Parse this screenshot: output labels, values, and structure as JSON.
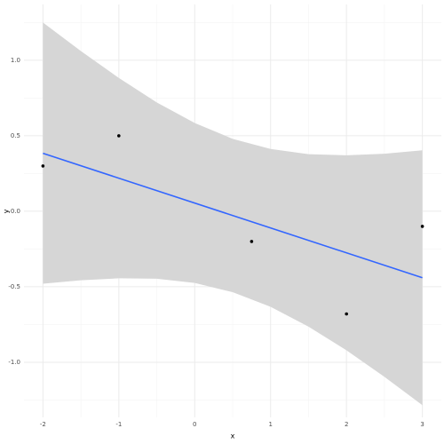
{
  "chart_data": {
    "type": "scatter",
    "x_label": "x",
    "y_label": "y",
    "x": [
      -2,
      -1,
      0.75,
      2,
      3
    ],
    "values": [
      0.3,
      0.5,
      -0.2,
      -0.68,
      -0.1
    ],
    "color": "#000000",
    "fit": {
      "color": "#3366ff",
      "x": [
        -2,
        3
      ],
      "values": [
        0.384,
        -0.44
      ]
    },
    "band": {
      "color": "#d6d6d6",
      "x": [
        -2,
        -1.5,
        -1,
        -0.5,
        0,
        0.5,
        1,
        1.5,
        2,
        2.5,
        3
      ],
      "upper": [
        1.25,
        1.061,
        0.883,
        0.721,
        0.585,
        0.48,
        0.413,
        0.378,
        0.371,
        0.381,
        0.404
      ],
      "lower": [
        -0.48,
        -0.457,
        -0.444,
        -0.447,
        -0.475,
        -0.536,
        -0.633,
        -0.764,
        -0.921,
        -1.097,
        -1.284
      ]
    },
    "xlim": [
      -2.25,
      3.25
    ],
    "ylim": [
      -1.365,
      1.37
    ],
    "xticks": [
      -2,
      -1,
      0,
      1,
      2,
      3
    ],
    "yticks": [
      {
        "value": -1,
        "label": "-1.0"
      },
      -0.5,
      {
        "value": 0,
        "label": "0.0"
      },
      0.5,
      {
        "value": 1,
        "label": "1.0"
      }
    ],
    "xminorticks": [
      -1.5,
      -0.5,
      0.5,
      1.5,
      2.5
    ],
    "yminorticks": [
      -1.25,
      -0.75,
      -0.25,
      0.25,
      0.75,
      1.25
    ],
    "grid": true
  }
}
